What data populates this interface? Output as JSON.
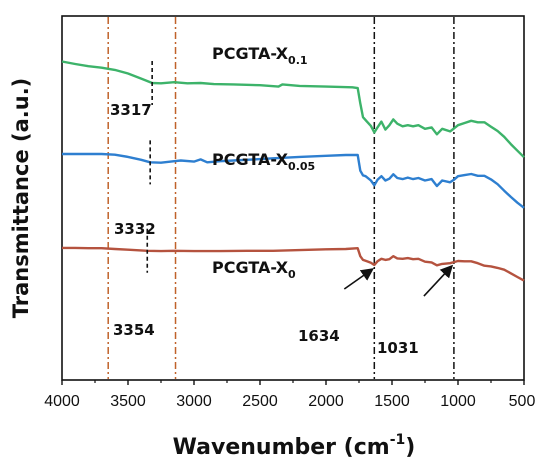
{
  "chart_data": {
    "type": "line",
    "xlabel": "Wavenumber",
    "xlabel_unit_open": " (cm",
    "xlabel_unit_exp": "-1",
    "xlabel_unit_close": ")",
    "ylabel": "Transmittance (a.u.)",
    "xlim": [
      4000,
      500
    ],
    "x_reversed": true,
    "x_ticks": [
      "4000",
      "3500",
      "3000",
      "2500",
      "2000",
      "1500",
      "1000",
      "500"
    ],
    "x_tick_values": [
      4000,
      3500,
      3000,
      2500,
      2000,
      1500,
      1000,
      500
    ],
    "y_ticks_shown": false,
    "grid": false,
    "reference_lines": [
      {
        "x": 3650,
        "style": "dash-dot",
        "color": "#c0622a"
      },
      {
        "x": 3140,
        "style": "dash-dot",
        "color": "#c0622a"
      },
      {
        "x": 1634,
        "style": "dash-dot",
        "color": "#111111"
      },
      {
        "x": 1031,
        "style": "dash-dot",
        "color": "#111111"
      }
    ],
    "series": [
      {
        "name_base": "PCGTA-X",
        "name_sub": "0.1",
        "color": "#3db36a",
        "points": [
          [
            4000,
            0.875
          ],
          [
            3900,
            0.868
          ],
          [
            3800,
            0.862
          ],
          [
            3700,
            0.858
          ],
          [
            3600,
            0.852
          ],
          [
            3500,
            0.842
          ],
          [
            3400,
            0.828
          ],
          [
            3317,
            0.816
          ],
          [
            3250,
            0.815
          ],
          [
            3150,
            0.818
          ],
          [
            3050,
            0.815
          ],
          [
            2950,
            0.816
          ],
          [
            2850,
            0.813
          ],
          [
            2700,
            0.812
          ],
          [
            2500,
            0.81
          ],
          [
            2360,
            0.806
          ],
          [
            2330,
            0.812
          ],
          [
            2200,
            0.808
          ],
          [
            2000,
            0.806
          ],
          [
            1800,
            0.804
          ],
          [
            1760,
            0.802
          ],
          [
            1740,
            0.76
          ],
          [
            1720,
            0.722
          ],
          [
            1690,
            0.71
          ],
          [
            1660,
            0.698
          ],
          [
            1634,
            0.68
          ],
          [
            1610,
            0.694
          ],
          [
            1580,
            0.71
          ],
          [
            1550,
            0.688
          ],
          [
            1520,
            0.7
          ],
          [
            1490,
            0.716
          ],
          [
            1460,
            0.704
          ],
          [
            1420,
            0.697
          ],
          [
            1380,
            0.7
          ],
          [
            1340,
            0.697
          ],
          [
            1300,
            0.7
          ],
          [
            1250,
            0.69
          ],
          [
            1200,
            0.694
          ],
          [
            1160,
            0.675
          ],
          [
            1120,
            0.69
          ],
          [
            1060,
            0.683
          ],
          [
            1031,
            0.691
          ],
          [
            1000,
            0.7
          ],
          [
            950,
            0.706
          ],
          [
            900,
            0.712
          ],
          [
            850,
            0.708
          ],
          [
            800,
            0.708
          ],
          [
            750,
            0.696
          ],
          [
            700,
            0.684
          ],
          [
            650,
            0.668
          ],
          [
            600,
            0.648
          ],
          [
            550,
            0.63
          ],
          [
            500,
            0.612
          ]
        ]
      },
      {
        "name_base": "PCGTA-X",
        "name_sub": "0.05",
        "color": "#2e7fd0",
        "points": [
          [
            4000,
            0.621
          ],
          [
            3900,
            0.621
          ],
          [
            3800,
            0.621
          ],
          [
            3700,
            0.621
          ],
          [
            3600,
            0.619
          ],
          [
            3500,
            0.613
          ],
          [
            3400,
            0.605
          ],
          [
            3332,
            0.598
          ],
          [
            3250,
            0.597
          ],
          [
            3150,
            0.601
          ],
          [
            3100,
            0.603
          ],
          [
            3000,
            0.6
          ],
          [
            2950,
            0.606
          ],
          [
            2900,
            0.598
          ],
          [
            2800,
            0.601
          ],
          [
            2700,
            0.603
          ],
          [
            2600,
            0.605
          ],
          [
            2500,
            0.607
          ],
          [
            2400,
            0.609
          ],
          [
            2200,
            0.613
          ],
          [
            2000,
            0.616
          ],
          [
            1850,
            0.618
          ],
          [
            1760,
            0.618
          ],
          [
            1740,
            0.575
          ],
          [
            1720,
            0.562
          ],
          [
            1700,
            0.56
          ],
          [
            1660,
            0.548
          ],
          [
            1634,
            0.535
          ],
          [
            1610,
            0.55
          ],
          [
            1580,
            0.56
          ],
          [
            1550,
            0.548
          ],
          [
            1520,
            0.553
          ],
          [
            1490,
            0.565
          ],
          [
            1460,
            0.555
          ],
          [
            1420,
            0.552
          ],
          [
            1380,
            0.556
          ],
          [
            1340,
            0.552
          ],
          [
            1300,
            0.555
          ],
          [
            1250,
            0.548
          ],
          [
            1200,
            0.552
          ],
          [
            1160,
            0.533
          ],
          [
            1120,
            0.548
          ],
          [
            1060,
            0.543
          ],
          [
            1031,
            0.55
          ],
          [
            1000,
            0.56
          ],
          [
            950,
            0.563
          ],
          [
            900,
            0.566
          ],
          [
            850,
            0.561
          ],
          [
            800,
            0.561
          ],
          [
            750,
            0.551
          ],
          [
            700,
            0.538
          ],
          [
            650,
            0.52
          ],
          [
            600,
            0.503
          ],
          [
            550,
            0.487
          ],
          [
            500,
            0.473
          ]
        ]
      },
      {
        "name_base": "PCGTA-X",
        "name_sub": "0",
        "color": "#b5533f",
        "points": [
          [
            4000,
            0.363
          ],
          [
            3900,
            0.363
          ],
          [
            3800,
            0.362
          ],
          [
            3700,
            0.362
          ],
          [
            3600,
            0.36
          ],
          [
            3500,
            0.358
          ],
          [
            3354,
            0.355
          ],
          [
            3250,
            0.354
          ],
          [
            3150,
            0.355
          ],
          [
            3000,
            0.354
          ],
          [
            2800,
            0.354
          ],
          [
            2600,
            0.355
          ],
          [
            2400,
            0.355
          ],
          [
            2200,
            0.357
          ],
          [
            2000,
            0.359
          ],
          [
            1850,
            0.36
          ],
          [
            1760,
            0.362
          ],
          [
            1740,
            0.34
          ],
          [
            1720,
            0.33
          ],
          [
            1690,
            0.326
          ],
          [
            1660,
            0.322
          ],
          [
            1634,
            0.316
          ],
          [
            1610,
            0.326
          ],
          [
            1580,
            0.333
          ],
          [
            1550,
            0.33
          ],
          [
            1520,
            0.332
          ],
          [
            1490,
            0.34
          ],
          [
            1460,
            0.334
          ],
          [
            1420,
            0.333
          ],
          [
            1380,
            0.335
          ],
          [
            1340,
            0.332
          ],
          [
            1300,
            0.333
          ],
          [
            1250,
            0.325
          ],
          [
            1200,
            0.323
          ],
          [
            1160,
            0.315
          ],
          [
            1120,
            0.319
          ],
          [
            1060,
            0.321
          ],
          [
            1031,
            0.324
          ],
          [
            1000,
            0.327
          ],
          [
            950,
            0.326
          ],
          [
            900,
            0.326
          ],
          [
            850,
            0.321
          ],
          [
            800,
            0.314
          ],
          [
            750,
            0.312
          ],
          [
            700,
            0.308
          ],
          [
            650,
            0.303
          ],
          [
            600,
            0.293
          ],
          [
            550,
            0.283
          ],
          [
            500,
            0.273
          ]
        ]
      }
    ],
    "peak_annotations": [
      {
        "label": "3317",
        "x": 3317,
        "series": 0,
        "style": "dashed-tick"
      },
      {
        "label": "3332",
        "x": 3332,
        "series": 1,
        "style": "dashed-tick"
      },
      {
        "label": "3354",
        "x": 3354,
        "series": 2,
        "style": "dashed-tick"
      },
      {
        "label": "1634",
        "x": 1634,
        "series": 2,
        "style": "arrow"
      },
      {
        "label": "1031",
        "x": 1031,
        "series": 2,
        "style": "arrow"
      }
    ]
  }
}
